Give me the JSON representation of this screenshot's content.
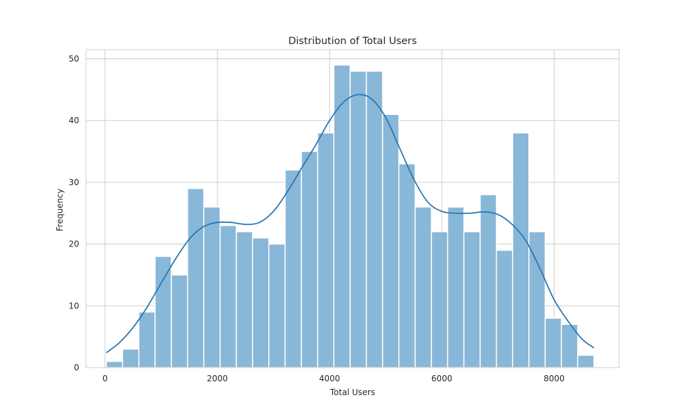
{
  "chart_data": {
    "type": "bar",
    "title": "Distribution of Total Users",
    "xlabel": "Total Users",
    "ylabel": "Frequency",
    "xlim": [
      -340,
      9160
    ],
    "ylim": [
      0,
      51.5
    ],
    "x_ticks": [
      0,
      2000,
      4000,
      6000,
      8000
    ],
    "y_ticks": [
      0,
      10,
      20,
      30,
      40,
      50
    ],
    "grid": true,
    "bin_edges": [
      22,
      311.6,
      601.2,
      890.8,
      1180.4,
      1470,
      1759.6,
      2049.2,
      2338.8,
      2628.4,
      2918,
      3207.6,
      3497.2,
      3786.8,
      4076.4,
      4366,
      4655.6,
      4945.2,
      5234.8,
      5524.4,
      5814,
      6103.6,
      6393.2,
      6682.8,
      6972.4,
      7262,
      7551.6,
      7841.2,
      8130.8,
      8420.4,
      8710
    ],
    "counts": [
      1,
      3,
      9,
      18,
      15,
      29,
      26,
      23,
      22,
      21,
      20,
      32,
      35,
      38,
      49,
      48,
      48,
      41,
      33,
      26,
      22,
      26,
      22,
      28,
      19,
      38,
      22,
      8,
      7,
      2
    ],
    "kde": {
      "x": [
        22,
        250,
        500,
        750,
        1000,
        1250,
        1500,
        1750,
        2000,
        2250,
        2500,
        2750,
        3000,
        3250,
        3500,
        3750,
        4000,
        4250,
        4500,
        4750,
        5000,
        5250,
        5500,
        5750,
        6000,
        6250,
        6500,
        6750,
        7000,
        7250,
        7500,
        7750,
        8000,
        8250,
        8500,
        8710
      ],
      "y": [
        2.4,
        4.0,
        6.5,
        9.8,
        13.7,
        17.5,
        20.8,
        22.8,
        23.5,
        23.5,
        23.2,
        23.5,
        25.3,
        28.5,
        32.3,
        36.0,
        40.0,
        43.0,
        44.2,
        43.5,
        40.5,
        35.5,
        30.5,
        26.8,
        25.3,
        25.0,
        25.0,
        25.2,
        24.8,
        23.2,
        20.5,
        16.0,
        11.0,
        7.5,
        4.6,
        3.2
      ]
    },
    "colors": {
      "bar_fill": "#89b7d8",
      "bar_edge": "#ffffff",
      "kde_line": "#2a77b0",
      "grid": "#cccccc",
      "frame": "#cccccc"
    }
  }
}
